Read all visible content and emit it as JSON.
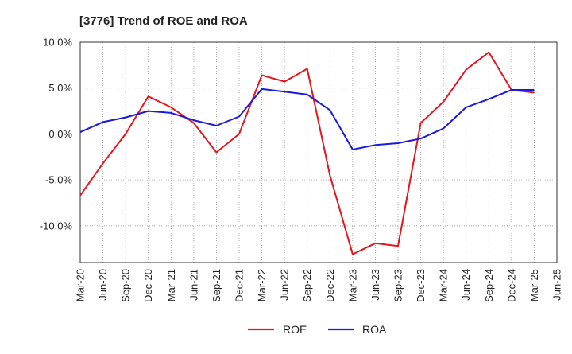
{
  "chart_data": {
    "type": "line",
    "title": "[3776]  Trend of ROE and ROA",
    "x": [
      "Mar-20",
      "Jun-20",
      "Sep-20",
      "Dec-20",
      "Mar-21",
      "Jun-21",
      "Sep-21",
      "Dec-21",
      "Mar-22",
      "Jun-22",
      "Sep-22",
      "Dec-22",
      "Mar-23",
      "Jun-23",
      "Sep-23",
      "Dec-23",
      "Mar-24",
      "Jun-24",
      "Sep-24",
      "Dec-24",
      "Mar-25",
      "Jun-25"
    ],
    "ylim": [
      -14,
      10
    ],
    "yticks": [
      10,
      5,
      0,
      -5,
      -10
    ],
    "ytick_labels": [
      "10.0%",
      "5.0%",
      "0.0%",
      "-5.0%",
      "-10.0%"
    ],
    "grid": true,
    "legend_position": "bottom",
    "series": [
      {
        "name": "ROE",
        "color": "#e8141c",
        "values": [
          -6.7,
          -3.2,
          0.0,
          4.1,
          2.9,
          1.2,
          -2.0,
          0.0,
          6.4,
          5.7,
          7.1,
          -4.5,
          -13.1,
          -11.9,
          -12.2,
          1.2,
          3.5,
          7.0,
          8.9,
          4.8,
          4.5,
          null
        ]
      },
      {
        "name": "ROA",
        "color": "#1a1adc",
        "values": [
          0.2,
          1.3,
          1.8,
          2.5,
          2.3,
          1.5,
          0.9,
          1.9,
          4.9,
          4.6,
          4.3,
          2.6,
          -1.7,
          -1.2,
          -1.0,
          -0.5,
          0.6,
          2.9,
          3.8,
          4.8,
          4.8,
          null
        ]
      }
    ]
  }
}
